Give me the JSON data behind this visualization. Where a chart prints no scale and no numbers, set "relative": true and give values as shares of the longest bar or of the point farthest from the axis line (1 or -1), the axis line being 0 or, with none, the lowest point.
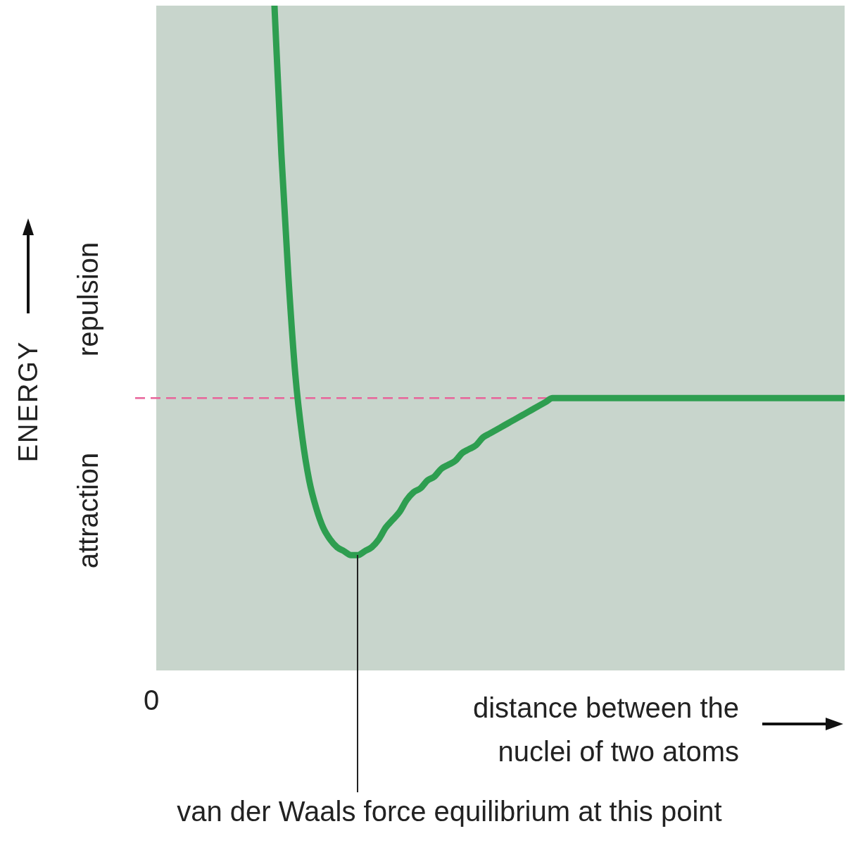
{
  "chart_data": {
    "type": "line",
    "relative": true,
    "xlabel": "distance between the nuclei of two atoms",
    "ylabel": "ENERGY",
    "categories": [
      null,
      null,
      null,
      null,
      null,
      null,
      null,
      null,
      null,
      null,
      null,
      null,
      null,
      null,
      null,
      null,
      null,
      null,
      null,
      null,
      null,
      null,
      null,
      null,
      null,
      null,
      null,
      null,
      null,
      null,
      null,
      null,
      null,
      null,
      null,
      null,
      null,
      null,
      null,
      null,
      null,
      null,
      null,
      null,
      null,
      null,
      null,
      null,
      null,
      null,
      null,
      null,
      null,
      null,
      null,
      null,
      null,
      null,
      null,
      null,
      null,
      null,
      null,
      null,
      null,
      null,
      null,
      null,
      null,
      null,
      null,
      null,
      null,
      null,
      null,
      null,
      null,
      null,
      null,
      null,
      null,
      null,
      null,
      null,
      null,
      null,
      null,
      null,
      null,
      null,
      null,
      null,
      null,
      null,
      null,
      null,
      null,
      null,
      null,
      null
    ],
    "series": [
      {
        "color": "#2e9e50",
        "values": [
          null,
          null,
          null,
          null,
          null,
          null,
          null,
          null,
          null,
          null,
          null,
          null,
          null,
          null,
          null,
          null,
          null,
          1,
          0.62,
          0.31,
          0.06,
          -0.1,
          -0.21,
          -0.28,
          -0.33,
          -0.36,
          -0.38,
          -0.39,
          -0.4,
          -0.4,
          -0.39,
          -0.38,
          -0.36,
          -0.33,
          -0.31,
          -0.29,
          -0.26,
          -0.24,
          -0.23,
          -0.21,
          -0.2,
          -0.18,
          -0.17,
          -0.16,
          -0.14,
          -0.13,
          -0.12,
          -0.1,
          -0.09,
          -0.08,
          -0.07,
          -0.06,
          -0.05,
          -0.04,
          -0.03,
          -0.02,
          -0.01,
          0,
          0,
          0,
          0,
          0,
          0,
          0,
          0,
          0,
          0,
          0,
          0,
          0,
          0,
          0,
          0,
          0,
          0,
          0,
          0,
          0,
          0,
          0,
          0,
          0,
          0,
          0,
          0,
          0,
          0,
          0,
          0,
          0,
          0,
          0,
          0,
          0,
          0,
          0,
          0,
          0,
          0,
          0
        ]
      }
    ],
    "ref_lines": [
      {
        "axis": "y",
        "value": 0,
        "color": "#e8649a",
        "line_style": "dashed"
      }
    ],
    "tick_labels": false,
    "marker": "none",
    "line_style": "solid",
    "annotations": [
      "0",
      "repulsion",
      "attraction",
      "van der Waals force equilibrium at this point"
    ]
  }
}
